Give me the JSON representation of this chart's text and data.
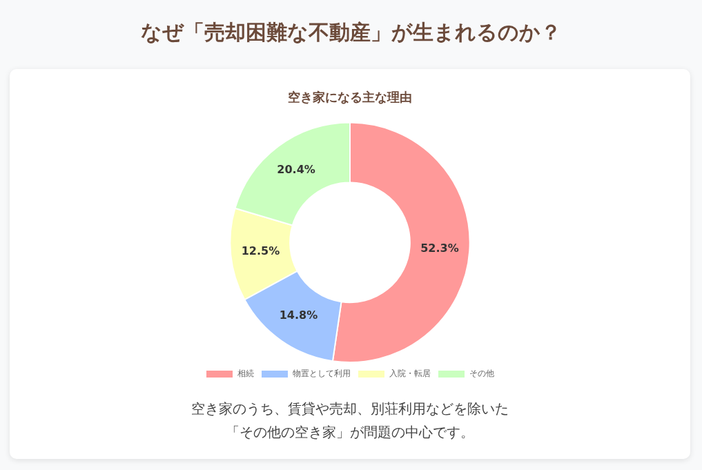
{
  "chart_data": {
    "type": "donut",
    "title": "なぜ「売却困難な不動産」が生まれるのか？",
    "subtitle": "空き家になる主な理由",
    "categories": [
      "相続",
      "物置として利用",
      "入院・転居",
      "その他"
    ],
    "values": [
      52.3,
      14.8,
      12.5,
      20.4
    ],
    "colors": [
      "#ff9999",
      "#a0c4ff",
      "#fdffb6",
      "#caffbf"
    ],
    "value_labels": [
      "52.3%",
      "14.8%",
      "12.5%",
      "20.4%"
    ],
    "legend": "bottom",
    "annotations": [
      "空き家のうち、賃貸や売却、別荘利用などを除いた「その他の空き家」が問題の中心です。"
    ]
  }
}
